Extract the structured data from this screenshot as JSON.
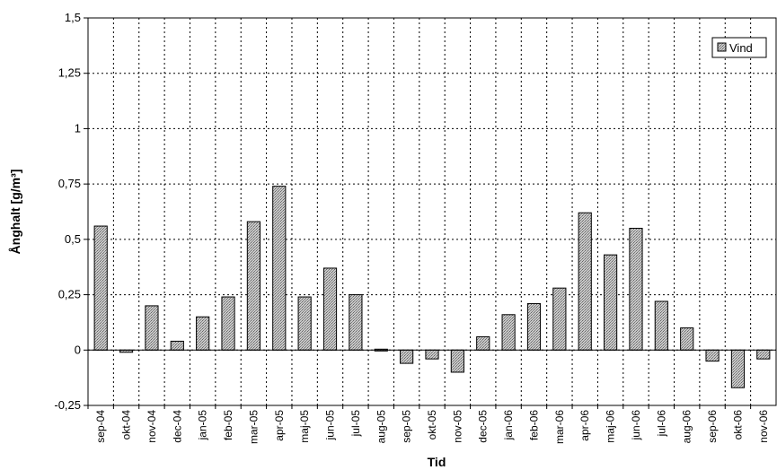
{
  "chart_data": {
    "type": "bar",
    "title": "",
    "xlabel": "Tid",
    "ylabel": "Ånghalt [g/m³]",
    "ylim": [
      -0.25,
      1.5
    ],
    "yticks": [
      {
        "value": 1.5,
        "label": "1,5"
      },
      {
        "value": 1.25,
        "label": "1,25"
      },
      {
        "value": 1,
        "label": "1"
      },
      {
        "value": 0.75,
        "label": "0,75"
      },
      {
        "value": 0.5,
        "label": "0,5"
      },
      {
        "value": 0.25,
        "label": "0,25"
      },
      {
        "value": 0,
        "label": "0"
      },
      {
        "value": -0.25,
        "label": "-0,25"
      }
    ],
    "grid": true,
    "legend_position": "top-right",
    "categories": [
      "sep-04",
      "okt-04",
      "nov-04",
      "dec-04",
      "jan-05",
      "feb-05",
      "mar-05",
      "apr-05",
      "maj-05",
      "jun-05",
      "jul-05",
      "aug-05",
      "sep-05",
      "okt-05",
      "nov-05",
      "dec-05",
      "jan-06",
      "feb-06",
      "mar-06",
      "apr-06",
      "maj-06",
      "jun-06",
      "jul-06",
      "aug-06",
      "sep-06",
      "okt-06",
      "nov-06"
    ],
    "series": [
      {
        "name": "Vind",
        "color": "#b0b0b0",
        "values": [
          0.56,
          -0.01,
          0.2,
          0.04,
          0.15,
          0.24,
          0.58,
          0.74,
          0.24,
          0.37,
          0.25,
          0,
          -0.06,
          -0.04,
          -0.1,
          0.06,
          0.16,
          0.21,
          0.28,
          0.62,
          0.43,
          0.55,
          0.22,
          0.1,
          -0.05,
          -0.17,
          -0.04
        ]
      }
    ]
  }
}
